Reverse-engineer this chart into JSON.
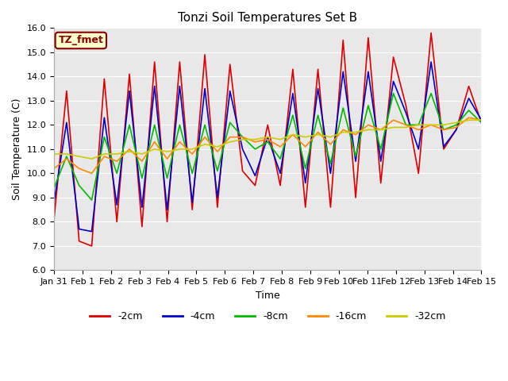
{
  "title": "Tonzi Soil Temperatures Set B",
  "xlabel": "Time",
  "ylabel": "Soil Temperature (C)",
  "ylim": [
    6.0,
    16.0
  ],
  "yticks": [
    6.0,
    7.0,
    8.0,
    9.0,
    10.0,
    11.0,
    12.0,
    13.0,
    14.0,
    15.0,
    16.0
  ],
  "xtick_labels": [
    "Jan 31",
    "Feb 1",
    "Feb 2",
    "Feb 3",
    "Feb 4",
    "Feb 5",
    "Feb 6",
    "Feb 7",
    "Feb 8",
    "Feb 9",
    "Feb 10",
    "Feb 11",
    "Feb 12",
    "Feb 13",
    "Feb 14",
    "Feb 15"
  ],
  "annotation_text": "TZ_fmet",
  "annotation_bg": "#ffffcc",
  "annotation_border": "#8b0000",
  "series": {
    "neg2cm": {
      "color": "#dd0000",
      "label": "-2cm",
      "values": [
        8.1,
        13.4,
        7.2,
        7.0,
        13.9,
        8.0,
        14.1,
        7.8,
        14.6,
        8.0,
        14.6,
        8.5,
        14.9,
        8.6,
        14.5,
        10.1,
        9.5,
        12.0,
        9.5,
        14.3,
        8.6,
        14.3,
        8.6,
        15.5,
        9.0,
        15.6,
        9.6,
        14.8,
        12.8,
        10.0,
        15.8,
        11.0,
        11.8,
        13.6,
        12.1
      ]
    },
    "neg4cm": {
      "color": "#0000cc",
      "label": "-4cm",
      "values": [
        8.8,
        12.1,
        7.7,
        7.6,
        12.3,
        8.7,
        13.4,
        8.6,
        13.6,
        8.5,
        13.6,
        8.8,
        13.5,
        9.0,
        13.4,
        11.0,
        9.9,
        11.5,
        10.0,
        13.3,
        9.6,
        13.5,
        10.0,
        14.2,
        10.5,
        14.2,
        10.5,
        13.8,
        12.5,
        11.0,
        14.6,
        11.1,
        11.8,
        13.1,
        12.2
      ]
    },
    "neg8cm": {
      "color": "#00bb00",
      "label": "-8cm",
      "values": [
        9.4,
        10.7,
        9.5,
        8.9,
        11.5,
        10.0,
        12.0,
        9.8,
        12.0,
        9.8,
        12.0,
        10.0,
        12.0,
        10.1,
        12.1,
        11.5,
        11.0,
        11.3,
        10.6,
        12.4,
        10.2,
        12.4,
        10.4,
        12.7,
        10.7,
        12.8,
        11.0,
        13.3,
        12.0,
        12.0,
        13.3,
        11.8,
        12.0,
        12.6,
        12.1
      ]
    },
    "neg16cm": {
      "color": "#ff8800",
      "label": "-16cm",
      "values": [
        10.2,
        10.6,
        10.2,
        10.0,
        10.7,
        10.5,
        11.0,
        10.5,
        11.3,
        10.6,
        11.3,
        10.8,
        11.5,
        10.9,
        11.5,
        11.5,
        11.3,
        11.4,
        11.1,
        11.6,
        11.1,
        11.7,
        11.2,
        11.8,
        11.6,
        12.0,
        11.8,
        12.2,
        12.0,
        11.8,
        12.0,
        11.8,
        11.9,
        12.3,
        12.2
      ]
    },
    "neg32cm": {
      "color": "#cccc00",
      "label": "-32cm",
      "values": [
        10.8,
        10.8,
        10.7,
        10.6,
        10.8,
        10.8,
        10.9,
        10.8,
        11.0,
        10.9,
        11.0,
        11.0,
        11.2,
        11.1,
        11.3,
        11.4,
        11.4,
        11.5,
        11.4,
        11.6,
        11.5,
        11.6,
        11.5,
        11.7,
        11.7,
        11.8,
        11.8,
        11.9,
        11.9,
        12.0,
        12.0,
        12.0,
        12.1,
        12.2,
        12.2
      ]
    }
  },
  "plot_bg": "#e8e8e8",
  "fig_bg": "#ffffff",
  "n_xticks": 16,
  "title_fontsize": 11,
  "tick_fontsize": 8,
  "axis_label_fontsize": 9
}
